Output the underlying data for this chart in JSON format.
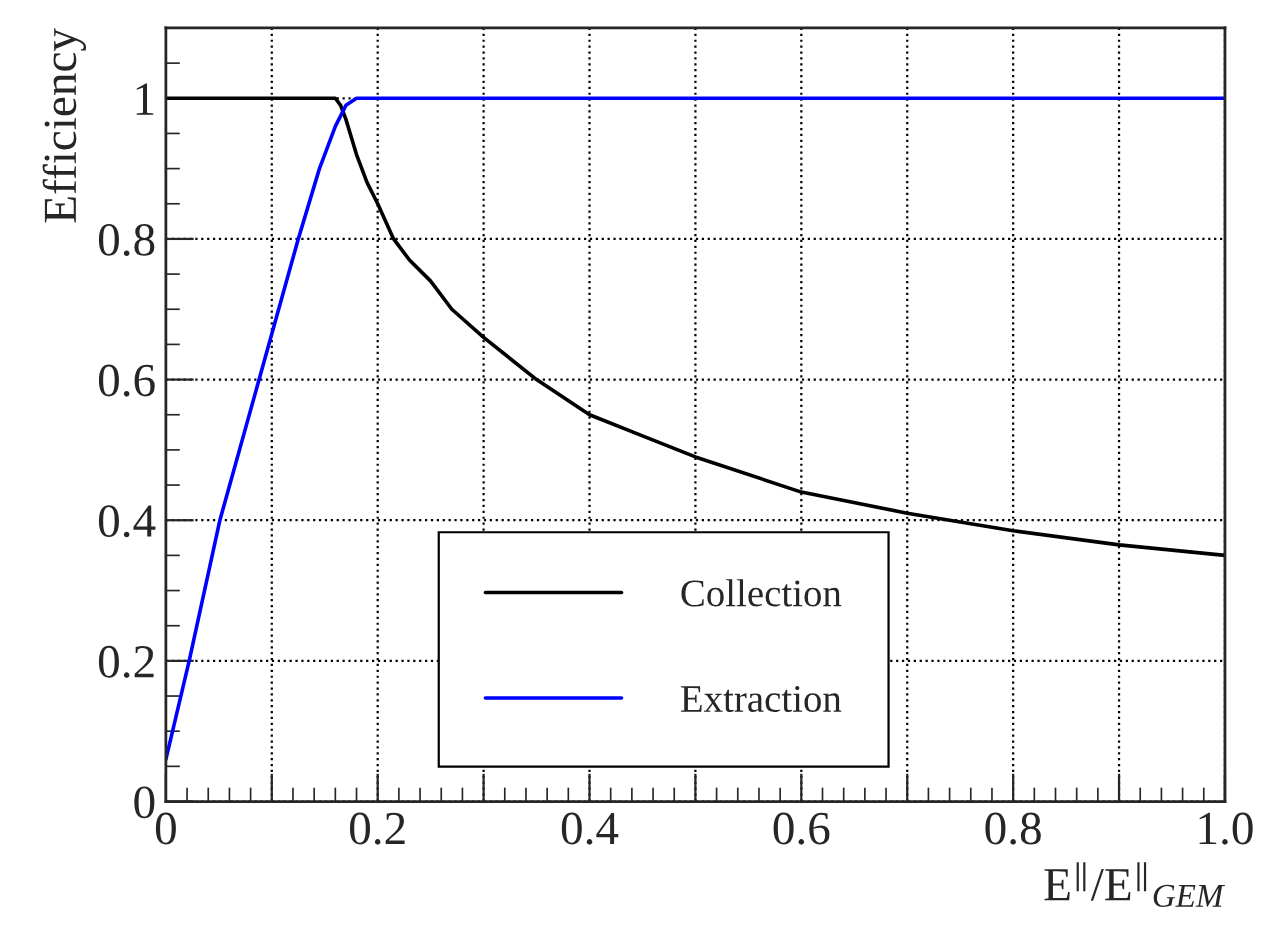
{
  "chart_data": {
    "type": "line",
    "xlabel": "E$^{∥}$/E$^{∥}$$_{GEM}$",
    "ylabel": "Efficiency",
    "xlim": [
      0,
      1.0
    ],
    "ylim": [
      0,
      1.1
    ],
    "xticks": [
      0,
      {
        "value": 0.1,
        "label": null
      },
      0.2,
      {
        "value": 0.3,
        "label": null
      },
      0.4,
      {
        "value": 0.5,
        "label": null
      },
      0.6,
      {
        "value": 0.7,
        "label": null
      },
      0.8,
      {
        "value": 0.9,
        "label": null
      },
      {
        "value": 1.0,
        "label": "1.0"
      }
    ],
    "yticks": [
      0,
      0.2,
      0.4,
      0.6,
      0.8,
      1
    ],
    "grid": true,
    "legend": "bottom",
    "line_style": "solid",
    "marker": "none",
    "series": [
      {
        "name": "Collection",
        "color": "#000000",
        "x": [
          0,
          0.16,
          0.165,
          0.17,
          0.18,
          0.19,
          0.2,
          0.215,
          0.23,
          0.25,
          0.27,
          0.3,
          0.35,
          0.4,
          0.45,
          0.5,
          0.6,
          0.7,
          0.8,
          0.9,
          1.0
        ],
        "values": [
          1,
          1,
          0.99,
          0.97,
          0.92,
          0.88,
          0.85,
          0.8,
          0.77,
          0.74,
          0.7,
          0.66,
          0.6,
          0.55,
          0.52,
          0.49,
          0.44,
          0.41,
          0.385,
          0.365,
          0.35
        ]
      },
      {
        "name": "Extraction",
        "color": "#0000ff",
        "x": [
          0,
          0.022,
          0.051,
          0.088,
          0.125,
          0.145,
          0.16,
          0.17,
          0.18,
          1.0
        ],
        "values": [
          0.06,
          0.2,
          0.4,
          0.6,
          0.8,
          0.9,
          0.96,
          0.99,
          1.0,
          1.0
        ]
      }
    ]
  }
}
